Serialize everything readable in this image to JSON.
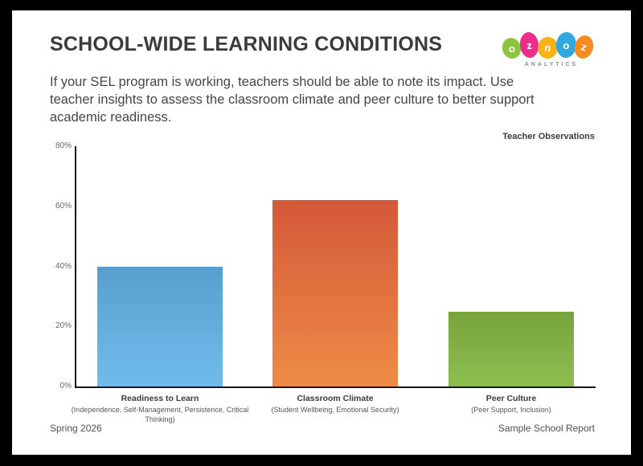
{
  "header": {
    "title": "SCHOOL-WIDE LEARNING CONDITIONS",
    "description": "If your SEL program is working, teachers should be able to note its impact. Use teacher insights to assess the classroom climate and peer culture to better support academic readiness.",
    "logo": {
      "name": "oznoz",
      "letters": [
        "o",
        "z",
        "n",
        "o",
        "z"
      ],
      "egg_colors": [
        "#8CC63F",
        "#EC2D8A",
        "#F7B219",
        "#2FA8E0",
        "#F68B1F"
      ],
      "subtext": "ANALYTICS"
    }
  },
  "chart_data": {
    "type": "bar",
    "title": "Teacher Observations",
    "categories": [
      "Readiness to Learn",
      "Classroom Climate",
      "Peer Culture"
    ],
    "category_subtitles": [
      "(Independence, Self-Management, Persistence, Critical Thinking)",
      "(Student Wellbeing, Emotional Security)",
      "(Peer Support, Inclusion)"
    ],
    "values": [
      40,
      62,
      25
    ],
    "unit": "%",
    "ylim": [
      0,
      80
    ],
    "yticks": [
      "0%",
      "20%",
      "40%",
      "60%",
      "80%"
    ],
    "grid": false,
    "legend_position": "top-right",
    "bar_gradients": [
      [
        "#589FCF",
        "#6FBCEC"
      ],
      [
        "#D4593A",
        "#EE8B46"
      ],
      [
        "#77A43D",
        "#8EBD4F"
      ]
    ]
  },
  "footer": {
    "left": "Spring 2026",
    "right": "Sample School Report"
  }
}
